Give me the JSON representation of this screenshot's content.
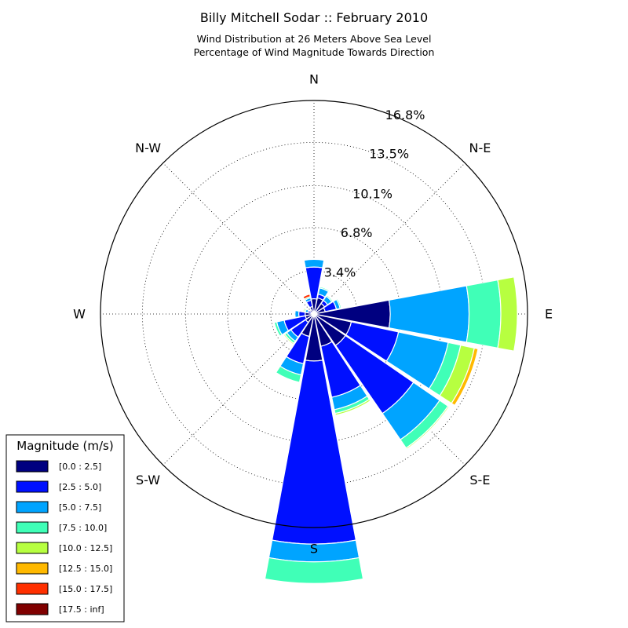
{
  "chart_data": {
    "type": "windrose",
    "title": "Billy Mitchell Sodar :: February 2010",
    "subtitle_lines": [
      "Wind Distribution at 26 Meters Above Sea Level",
      "Percentage of Wind Magnitude Towards Direction"
    ],
    "direction_labels": [
      "N",
      "N-E",
      "E",
      "S-E",
      "S",
      "S-W",
      "W",
      "N-W"
    ],
    "radial_ticks": [
      "3.4%",
      "6.8%",
      "10.1%",
      "13.5%",
      "16.8%"
    ],
    "radial_tick_values": [
      3.4,
      6.8,
      10.1,
      13.5,
      16.8
    ],
    "rmax": 16.8,
    "grid": true,
    "legend": {
      "title": "Magnitude (m/s)",
      "placement": "bottom-left",
      "bins": [
        {
          "label": "[0.0 : 2.5]",
          "color": "#000080"
        },
        {
          "label": "[2.5 : 5.0]",
          "color": "#0010ff"
        },
        {
          "label": "[5.0 : 7.5]",
          "color": "#00a4ff"
        },
        {
          "label": "[7.5 : 10.0]",
          "color": "#40ffb7"
        },
        {
          "label": "[10.0 : 12.5]",
          "color": "#b7ff40"
        },
        {
          "label": "[12.5 : 15.0]",
          "color": "#ffb900"
        },
        {
          "label": "[15.0 : 17.5]",
          "color": "#ff3000"
        },
        {
          "label": "[17.5 : inf]",
          "color": "#800000"
        }
      ]
    },
    "directions_deg": [
      0,
      22.5,
      45,
      67.5,
      90,
      112.5,
      135,
      157.5,
      180,
      202.5,
      225,
      247.5,
      270,
      292.5,
      315,
      337.5
    ],
    "series_values": [
      [
        1.2,
        1.3,
        1.0,
        0.9,
        6.0,
        3.0,
        3.0,
        2.6,
        3.7,
        1.8,
        0.8,
        0.7,
        0.7,
        0.2,
        0.4,
        0.6
      ],
      [
        2.5,
        0.3,
        0.3,
        0.9,
        0.0,
        3.8,
        6.5,
        4.1,
        14.4,
        2.2,
        1.4,
        1.7,
        0.5,
        0.3,
        0.0,
        0.5
      ],
      [
        0.6,
        0.5,
        0.4,
        0.3,
        6.2,
        4.0,
        2.5,
        1.0,
        1.4,
        0.9,
        0.4,
        0.6,
        0.3,
        0.2,
        0.0,
        0.2
      ],
      [
        0.0,
        0.1,
        0.1,
        0.1,
        2.5,
        1.0,
        0.8,
        0.3,
        1.7,
        0.6,
        0.2,
        0.2,
        0.0,
        0.1,
        0.0,
        0.1
      ],
      [
        0.0,
        0.0,
        0.0,
        0.0,
        1.3,
        1.1,
        0.1,
        0.15,
        0.0,
        0.0,
        0.1,
        0.0,
        0.0,
        0.1,
        0.0,
        0.0
      ],
      [
        0.0,
        0.0,
        0.0,
        0.0,
        0.0,
        0.3,
        0.0,
        0.0,
        0.0,
        0.0,
        0.0,
        0.0,
        0.0,
        0.0,
        0.0,
        0.0
      ],
      [
        0.0,
        0.0,
        0.0,
        0.0,
        0.0,
        0.0,
        0.0,
        0.0,
        0.0,
        0.0,
        0.0,
        0.0,
        0.0,
        0.0,
        0.0,
        0.2
      ],
      [
        0.0,
        0.0,
        0.0,
        0.0,
        0.0,
        0.0,
        0.0,
        0.0,
        0.0,
        0.0,
        0.0,
        0.0,
        0.0,
        0.0,
        0.0,
        0.0
      ]
    ]
  }
}
